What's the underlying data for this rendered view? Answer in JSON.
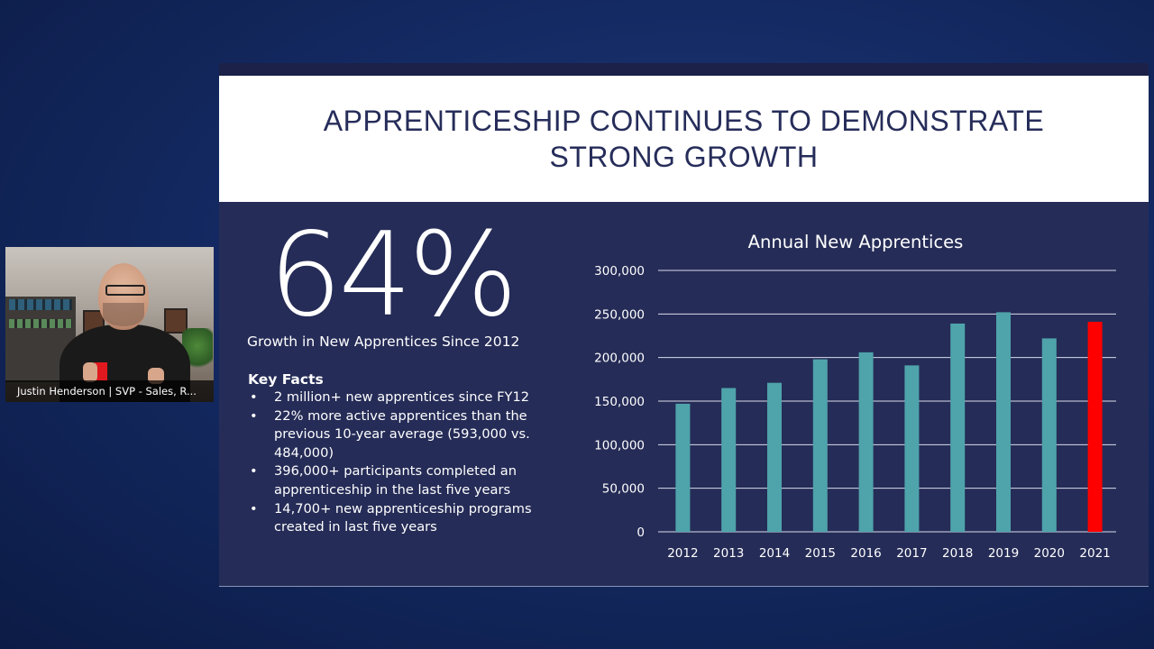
{
  "slide": {
    "title": "APPRENTICESHIP CONTINUES TO DEMONSTRATE STRONG GROWTH",
    "big_stat": "64%",
    "stat_caption": "Growth in New Apprentices Since 2012",
    "key_facts_heading": "Key Facts",
    "key_facts": [
      "2 million+ new apprentices since FY12",
      "22% more active apprentices than the previous 10-year average (593,000 vs. 484,000)",
      "396,000+ participants completed an apprenticeship in the last five years",
      "14,700+ new apprenticeship programs created in last five years"
    ]
  },
  "chart_data": {
    "type": "bar",
    "title": "Annual New Apprentices",
    "xlabel": "",
    "ylabel": "",
    "categories": [
      "2012",
      "2013",
      "2014",
      "2015",
      "2016",
      "2017",
      "2018",
      "2019",
      "2020",
      "2021"
    ],
    "values": [
      147000,
      165000,
      171000,
      198000,
      206000,
      191000,
      239000,
      252000,
      222000,
      241000
    ],
    "ylim": [
      0,
      300000
    ],
    "yticks": [
      "0",
      "50,000",
      "100,000",
      "150,000",
      "200,000",
      "250,000",
      "300,000"
    ],
    "grid": true,
    "legend": "none",
    "bar_color": "#4fa3ab",
    "highlight_color": "#ff0000",
    "highlight_category": "2021"
  },
  "video_tile": {
    "participant_label": "Justin Henderson | SVP - Sales, R..."
  },
  "colors": {
    "background": "#142a63",
    "slide_body": "#252c57",
    "title_text": "#262d5a"
  }
}
